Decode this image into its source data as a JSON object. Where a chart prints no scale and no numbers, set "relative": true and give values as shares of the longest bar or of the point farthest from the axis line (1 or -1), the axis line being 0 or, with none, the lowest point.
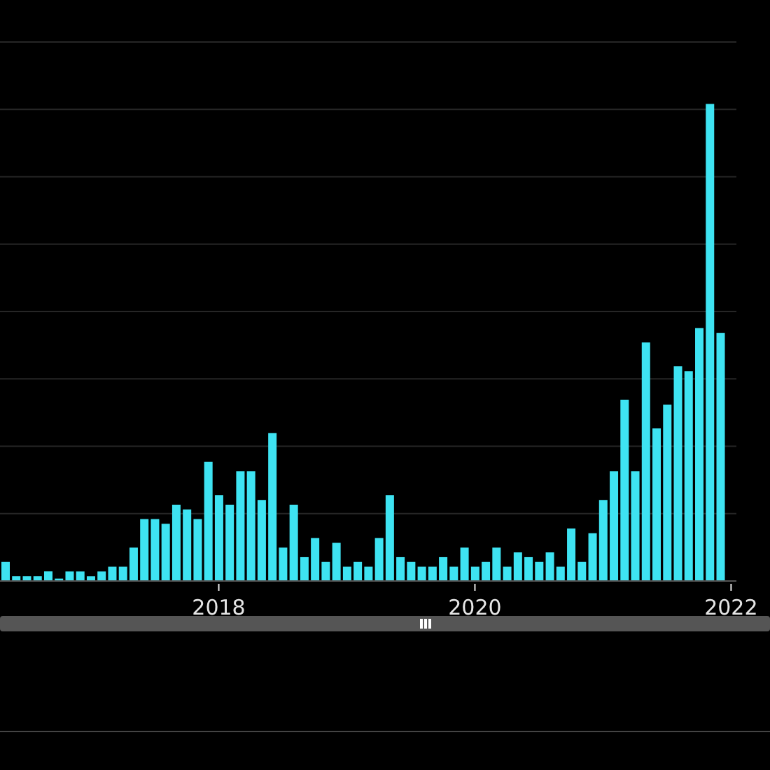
{
  "chart_data": {
    "type": "bar",
    "relative": true,
    "grid": "y",
    "color": "#3ee3f2",
    "categories": [
      null,
      null,
      null,
      null,
      null,
      null,
      null,
      null,
      null,
      null,
      null,
      null,
      null,
      null,
      null,
      null,
      null,
      null,
      null,
      null,
      "2018",
      null,
      null,
      null,
      null,
      null,
      null,
      null,
      null,
      null,
      null,
      null,
      null,
      null,
      null,
      null,
      null,
      null,
      null,
      null,
      null,
      null,
      null,
      null,
      "2020",
      null,
      null,
      null,
      null,
      null,
      null,
      null,
      null,
      null,
      null,
      null,
      null,
      null,
      null,
      null,
      null,
      null,
      null,
      null,
      null,
      null,
      null,
      null,
      "2022"
    ],
    "values": [
      0.04,
      0.01,
      0.01,
      0.01,
      0.02,
      0.005,
      0.02,
      0.02,
      0.01,
      0.02,
      0.03,
      0.03,
      0.07,
      0.13,
      0.13,
      0.12,
      0.16,
      0.15,
      0.13,
      0.25,
      0.18,
      0.16,
      0.23,
      0.23,
      0.17,
      0.31,
      0.07,
      0.16,
      0.05,
      0.09,
      0.04,
      0.08,
      0.03,
      0.04,
      0.03,
      0.09,
      0.18,
      0.05,
      0.04,
      0.03,
      0.03,
      0.05,
      0.03,
      0.07,
      0.03,
      0.04,
      0.07,
      0.03,
      0.06,
      0.05,
      0.04,
      0.06,
      0.03,
      0.11,
      0.04,
      0.1,
      0.17,
      0.23,
      0.38,
      0.23,
      0.5,
      0.32,
      0.37,
      0.45,
      0.44,
      0.53,
      1,
      0.52,
      null
    ]
  }
}
